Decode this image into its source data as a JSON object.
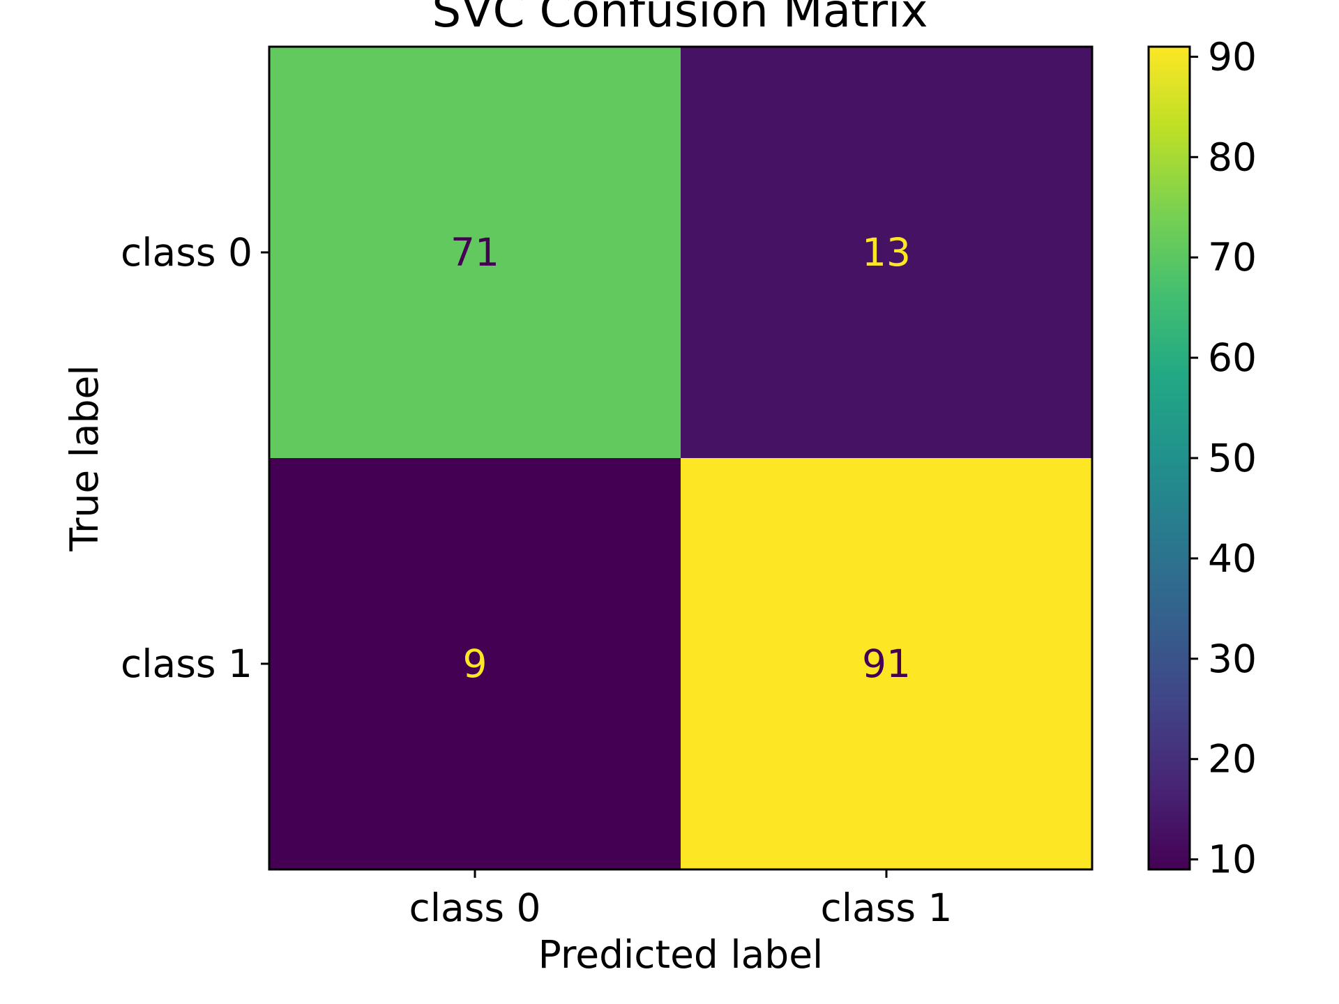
{
  "chart_data": {
    "type": "heatmap",
    "title": "SVC Confusion Matrix",
    "xlabel": "Predicted label",
    "ylabel": "True label",
    "x_categories": [
      "class 0",
      "class 1"
    ],
    "y_categories": [
      "class 0",
      "class 1"
    ],
    "values": [
      [
        71,
        13
      ],
      [
        9,
        91
      ]
    ],
    "colormap": "viridis",
    "colorbar": {
      "range": [
        9,
        91
      ],
      "ticks": [
        10,
        20,
        30,
        40,
        50,
        60,
        70,
        80,
        90
      ]
    },
    "grid": false
  },
  "colors": {
    "text_on_dark": "#fde725",
    "text_on_light": "#440154"
  }
}
